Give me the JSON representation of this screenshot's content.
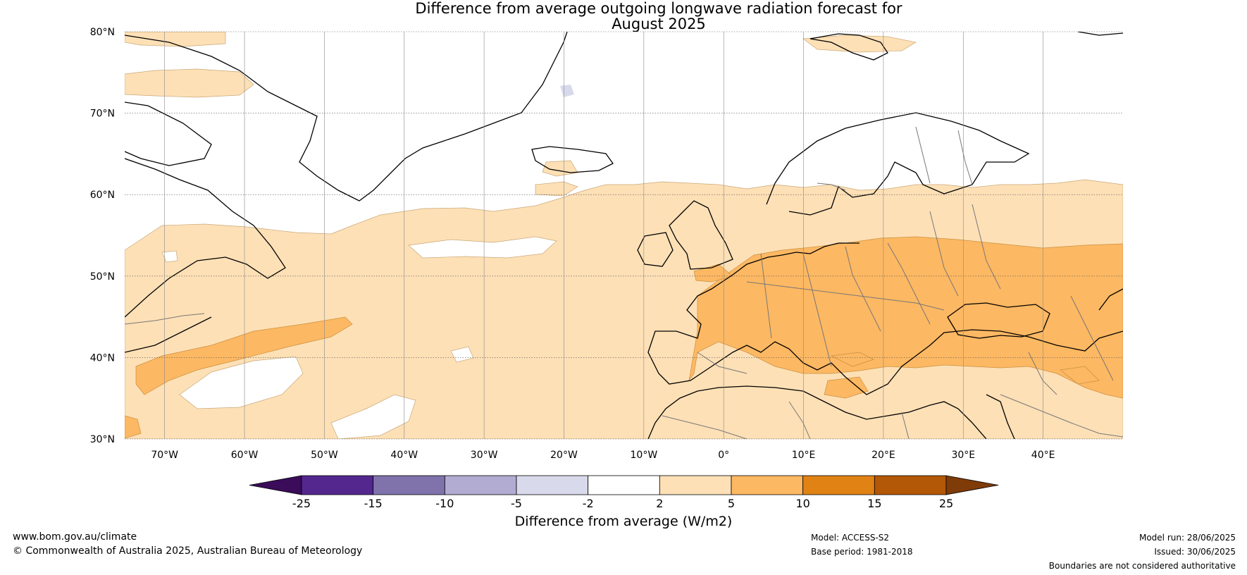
{
  "title": {
    "line1": "Difference from average outgoing longwave radiation forecast for",
    "line2": "August 2025"
  },
  "map": {
    "lat_labels": [
      "80°N",
      "70°N",
      "60°N",
      "50°N",
      "40°N",
      "30°N"
    ],
    "lon_labels": [
      "70°W",
      "60°W",
      "50°W",
      "40°W",
      "30°W",
      "20°W",
      "10°W",
      "0°",
      "10°E",
      "20°E",
      "30°E",
      "40°E"
    ],
    "lat_range": [
      30,
      80
    ],
    "lon_range": [
      -75,
      50
    ],
    "gridlines": true
  },
  "colorbar": {
    "label": "Difference from average (W/m2)",
    "ticks": [
      "-25",
      "-15",
      "-10",
      "-5",
      "-2",
      "2",
      "5",
      "10",
      "15",
      "25"
    ],
    "colors": [
      "#3b0c5a",
      "#54278f",
      "#8073ac",
      "#b2abd2",
      "#d8daeb",
      "#ffffff",
      "#fee0b6",
      "#fdb863",
      "#e08214",
      "#b35806",
      "#7f3b08"
    ]
  },
  "footer": {
    "website": "www.bom.gov.au/climate",
    "copyright": "© Commonwealth of Australia 2025, Australian Bureau of Meteorology",
    "model": "Model: ACCESS-S2",
    "base_period": "Base period: 1981-2018",
    "model_run": "Model run: 28/06/2025",
    "issued": "Issued: 30/06/2025",
    "disclaimer": "Boundaries are not considered authoritative"
  }
}
